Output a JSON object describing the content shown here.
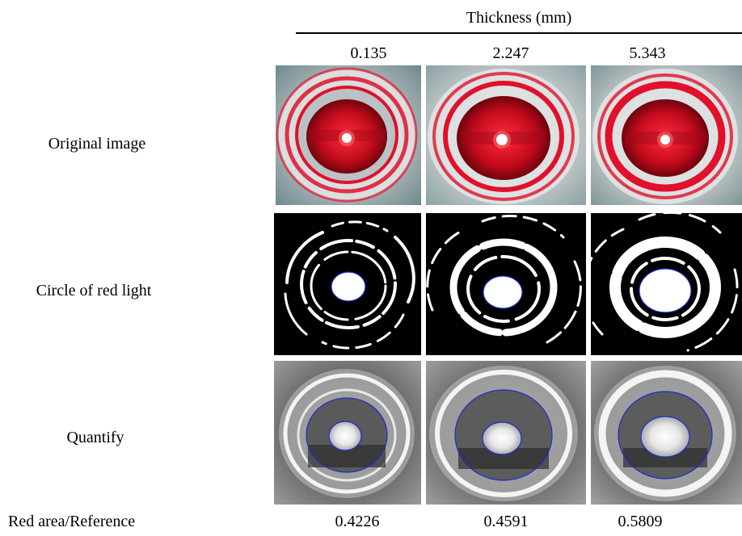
{
  "header": {
    "title": "Thickness (mm)"
  },
  "columns": [
    {
      "thickness": "0.135",
      "ratio": "0.4226"
    },
    {
      "thickness": "2.247",
      "ratio": "0.4591"
    },
    {
      "thickness": "5.343",
      "ratio": "0.5809"
    }
  ],
  "rows": [
    {
      "label": "Original image"
    },
    {
      "label": "Circle of red light"
    },
    {
      "label": "Quantify"
    }
  ],
  "footer": {
    "label": "Red area/Reference"
  },
  "colors": {
    "laser_red": "#e2102a",
    "outline_blue": "#1a2bd6",
    "background_black": "#000000"
  }
}
